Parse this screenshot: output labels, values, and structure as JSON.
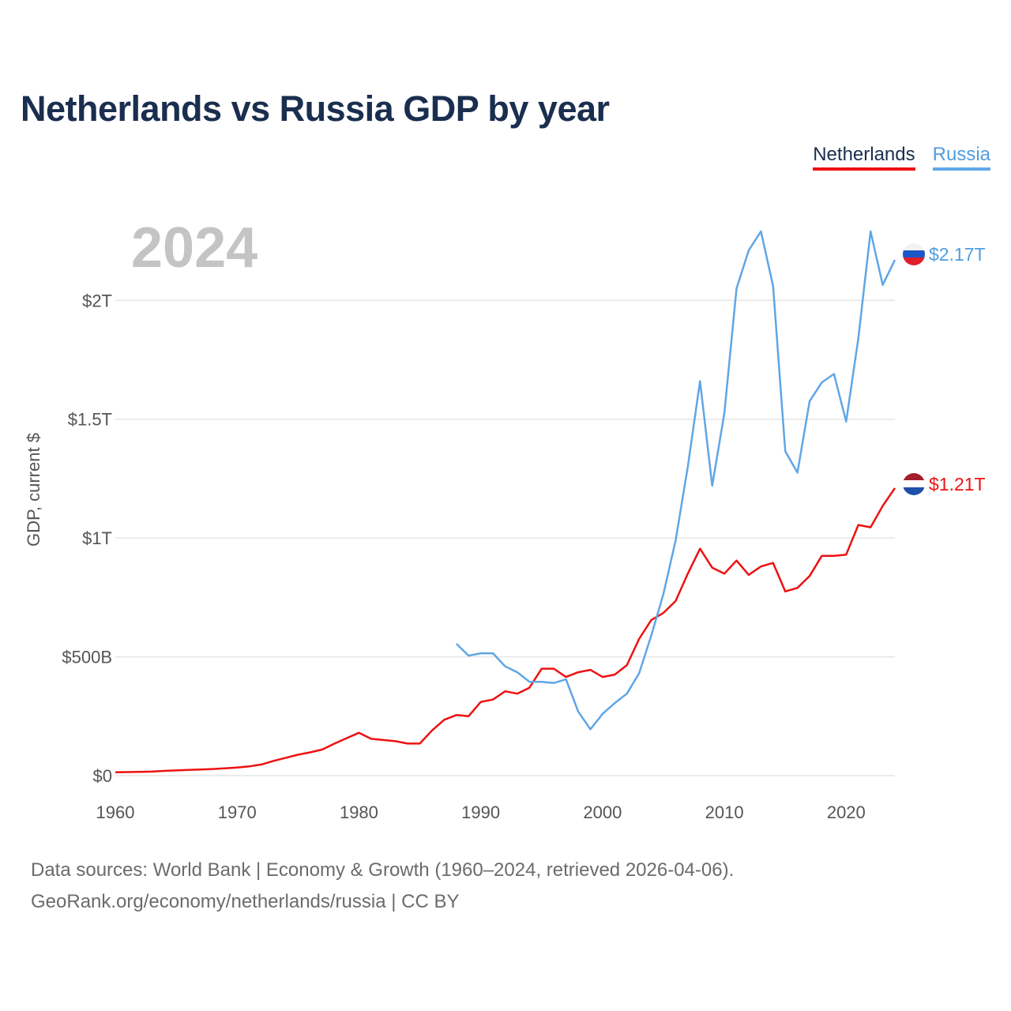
{
  "title": "Netherlands vs Russia GDP by year",
  "legend": {
    "netherlands": "Netherlands",
    "russia": "Russia"
  },
  "source": {
    "line1": "Data sources: World Bank | Economy & Growth (1960–2024, retrieved 2026-04-06).",
    "line2": "GeoRank.org/economy/netherlands/russia | CC BY"
  },
  "colors": {
    "netherlands": "#ee1111",
    "russia": "#5fa6e6",
    "grid": "#e6e6e6",
    "year": "#c4c4c4"
  },
  "chart_data": {
    "type": "line",
    "title": "Netherlands vs Russia GDP by year",
    "year_label": "2024",
    "xlabel": "",
    "ylabel": "GDP, current $",
    "xlim": [
      1960,
      2024
    ],
    "ylim": [
      0,
      2300
    ],
    "unit": "billions USD",
    "x_ticks": [
      1960,
      1970,
      1980,
      1990,
      2000,
      2010,
      2020
    ],
    "x_tick_labels": [
      "1960",
      "1970",
      "1980",
      "1990",
      "2000",
      "2010",
      "2020"
    ],
    "y_ticks": [
      0,
      500,
      1000,
      1500,
      2000
    ],
    "y_tick_labels": [
      "$0",
      "$500B",
      "$1T",
      "$1.5T",
      "$2T"
    ],
    "series": [
      {
        "name": "Netherlands",
        "end_label": "$1.21T",
        "points": [
          [
            1960,
            14
          ],
          [
            1961,
            15
          ],
          [
            1962,
            16
          ],
          [
            1963,
            17
          ],
          [
            1964,
            20
          ],
          [
            1965,
            22
          ],
          [
            1966,
            24
          ],
          [
            1967,
            26
          ],
          [
            1968,
            28
          ],
          [
            1969,
            31
          ],
          [
            1970,
            34
          ],
          [
            1971,
            39
          ],
          [
            1972,
            47
          ],
          [
            1973,
            62
          ],
          [
            1974,
            75
          ],
          [
            1975,
            88
          ],
          [
            1976,
            98
          ],
          [
            1977,
            110
          ],
          [
            1978,
            135
          ],
          [
            1979,
            158
          ],
          [
            1980,
            180
          ],
          [
            1981,
            155
          ],
          [
            1982,
            150
          ],
          [
            1983,
            145
          ],
          [
            1984,
            135
          ],
          [
            1985,
            135
          ],
          [
            1986,
            190
          ],
          [
            1987,
            235
          ],
          [
            1988,
            255
          ],
          [
            1989,
            250
          ],
          [
            1990,
            310
          ],
          [
            1991,
            320
          ],
          [
            1992,
            355
          ],
          [
            1993,
            345
          ],
          [
            1994,
            370
          ],
          [
            1995,
            450
          ],
          [
            1996,
            450
          ],
          [
            1997,
            415
          ],
          [
            1998,
            435
          ],
          [
            1999,
            445
          ],
          [
            2000,
            415
          ],
          [
            2001,
            425
          ],
          [
            2002,
            465
          ],
          [
            2003,
            575
          ],
          [
            2004,
            655
          ],
          [
            2005,
            685
          ],
          [
            2006,
            735
          ],
          [
            2007,
            850
          ],
          [
            2008,
            955
          ],
          [
            2009,
            875
          ],
          [
            2010,
            850
          ],
          [
            2011,
            905
          ],
          [
            2012,
            845
          ],
          [
            2013,
            880
          ],
          [
            2014,
            895
          ],
          [
            2015,
            775
          ],
          [
            2016,
            790
          ],
          [
            2017,
            840
          ],
          [
            2018,
            925
          ],
          [
            2019,
            925
          ],
          [
            2020,
            930
          ],
          [
            2021,
            1055
          ],
          [
            2022,
            1045
          ],
          [
            2023,
            1135
          ],
          [
            2024,
            1210
          ]
        ]
      },
      {
        "name": "Russia",
        "end_label": "$2.17T",
        "points": [
          [
            1988,
            555
          ],
          [
            1989,
            505
          ],
          [
            1990,
            515
          ],
          [
            1991,
            515
          ],
          [
            1992,
            460
          ],
          [
            1993,
            435
          ],
          [
            1994,
            395
          ],
          [
            1995,
            395
          ],
          [
            1996,
            390
          ],
          [
            1997,
            405
          ],
          [
            1998,
            270
          ],
          [
            1999,
            195
          ],
          [
            2000,
            260
          ],
          [
            2001,
            305
          ],
          [
            2002,
            345
          ],
          [
            2003,
            430
          ],
          [
            2004,
            590
          ],
          [
            2005,
            765
          ],
          [
            2006,
            990
          ],
          [
            2007,
            1300
          ],
          [
            2008,
            1660
          ],
          [
            2009,
            1220
          ],
          [
            2010,
            1525
          ],
          [
            2011,
            2050
          ],
          [
            2012,
            2210
          ],
          [
            2013,
            2290
          ],
          [
            2014,
            2060
          ],
          [
            2015,
            1365
          ],
          [
            2016,
            1275
          ],
          [
            2017,
            1575
          ],
          [
            2018,
            1655
          ],
          [
            2019,
            1690
          ],
          [
            2020,
            1490
          ],
          [
            2021,
            1840
          ],
          [
            2022,
            2290
          ],
          [
            2023,
            2065
          ],
          [
            2024,
            2170
          ]
        ]
      }
    ]
  }
}
